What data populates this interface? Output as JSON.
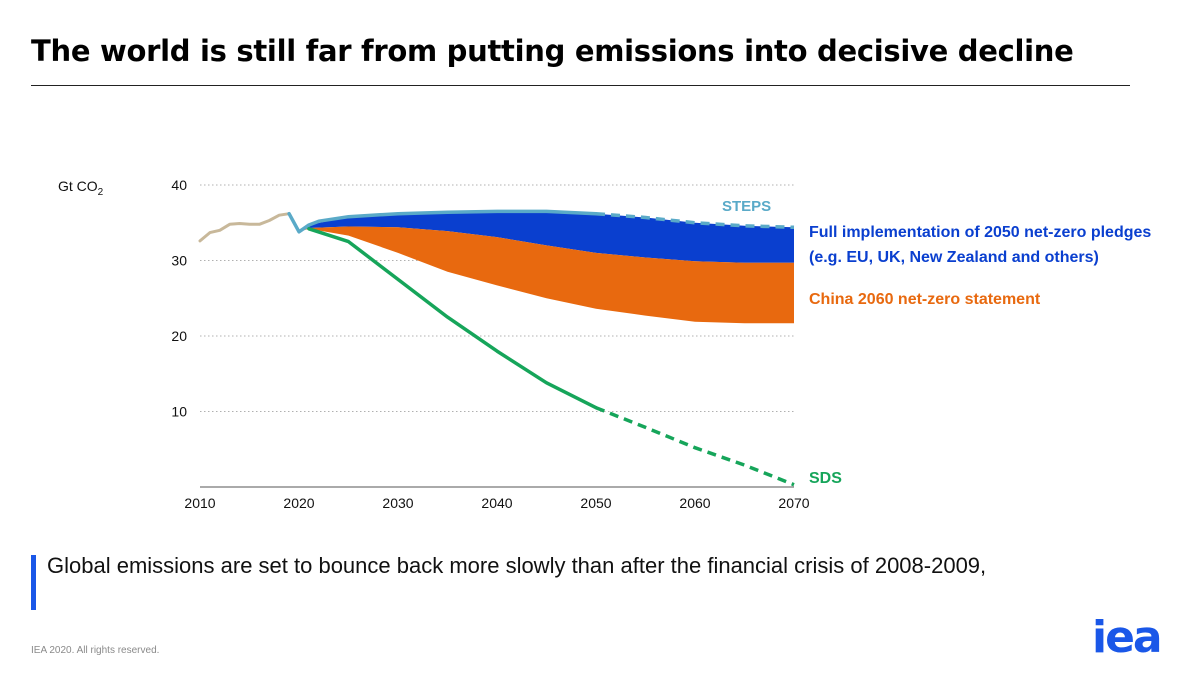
{
  "slide": {
    "title": "The world is still far from putting emissions into decisive decline",
    "caption": "Global emissions are set to bounce back more slowly than after the financial crisis of 2008-2009,",
    "footer": "IEA 2020. All rights reserved.",
    "logo_text": "iea"
  },
  "chart_data": {
    "type": "area",
    "title": "",
    "ylabel": "Gt CO",
    "ylabel_sub": "2",
    "xlabel": "",
    "xlim": [
      2010,
      2070
    ],
    "ylim": [
      0,
      40
    ],
    "x_ticks": [
      2010,
      2020,
      2030,
      2040,
      2050,
      2060,
      2070
    ],
    "y_ticks": [
      10,
      20,
      30,
      40
    ],
    "grid": "horizontal dotted",
    "colors": {
      "historical": "#c8b89a",
      "steps": "#5aaac8",
      "net_zero_pledges": "#0a3fcf",
      "china": "#e8690f",
      "sds": "#16a55a",
      "grid": "#b0b0b0"
    },
    "series": [
      {
        "name": "Historical",
        "style": "solid",
        "points": [
          [
            2010,
            32.6
          ],
          [
            2011,
            33.7
          ],
          [
            2012,
            34.0
          ],
          [
            2013,
            34.8
          ],
          [
            2014,
            34.9
          ],
          [
            2015,
            34.8
          ],
          [
            2016,
            34.8
          ],
          [
            2017,
            35.3
          ],
          [
            2018,
            36.0
          ],
          [
            2019,
            36.2
          ]
        ]
      },
      {
        "name": "STEPS",
        "label": "STEPS",
        "style": "solid-then-dashed",
        "dash_from": 2050,
        "points": [
          [
            2019,
            36.2
          ],
          [
            2020,
            33.8
          ],
          [
            2021,
            34.7
          ],
          [
            2022,
            35.2
          ],
          [
            2025,
            35.8
          ],
          [
            2030,
            36.2
          ],
          [
            2035,
            36.4
          ],
          [
            2040,
            36.5
          ],
          [
            2045,
            36.5
          ],
          [
            2050,
            36.2
          ],
          [
            2055,
            35.7
          ],
          [
            2060,
            35.0
          ],
          [
            2065,
            34.6
          ],
          [
            2070,
            34.4
          ]
        ]
      },
      {
        "name": "Full implementation of 2050 net-zero pledges",
        "label_line1": "Full implementation of 2050 net-zero pledges",
        "label_line2": "(e.g. EU, UK, New Zealand and others)",
        "style": "band",
        "upper": "STEPS",
        "points": [
          [
            2020,
            33.8
          ],
          [
            2021,
            34.3
          ],
          [
            2025,
            34.5
          ],
          [
            2030,
            34.4
          ],
          [
            2035,
            33.9
          ],
          [
            2040,
            33.1
          ],
          [
            2045,
            32.0
          ],
          [
            2050,
            31.0
          ],
          [
            2055,
            30.4
          ],
          [
            2060,
            29.9
          ],
          [
            2065,
            29.7
          ],
          [
            2070,
            29.7
          ]
        ]
      },
      {
        "name": "China 2060 net-zero statement",
        "label": "China 2060 net-zero statement",
        "style": "band",
        "upper": "Full implementation of 2050 net-zero pledges",
        "points": [
          [
            2020,
            33.8
          ],
          [
            2021,
            34.2
          ],
          [
            2025,
            33.3
          ],
          [
            2030,
            31.0
          ],
          [
            2035,
            28.5
          ],
          [
            2040,
            26.7
          ],
          [
            2045,
            25.0
          ],
          [
            2050,
            23.6
          ],
          [
            2055,
            22.7
          ],
          [
            2060,
            21.9
          ],
          [
            2065,
            21.7
          ],
          [
            2070,
            21.7
          ]
        ]
      },
      {
        "name": "SDS",
        "label": "SDS",
        "style": "solid-then-dashed",
        "dash_from": 2050,
        "points": [
          [
            2021,
            34.2
          ],
          [
            2025,
            32.5
          ],
          [
            2030,
            27.5
          ],
          [
            2035,
            22.5
          ],
          [
            2040,
            18.0
          ],
          [
            2045,
            13.8
          ],
          [
            2050,
            10.5
          ],
          [
            2055,
            7.9
          ],
          [
            2060,
            5.2
          ],
          [
            2065,
            2.9
          ],
          [
            2070,
            0.3
          ]
        ]
      }
    ]
  }
}
